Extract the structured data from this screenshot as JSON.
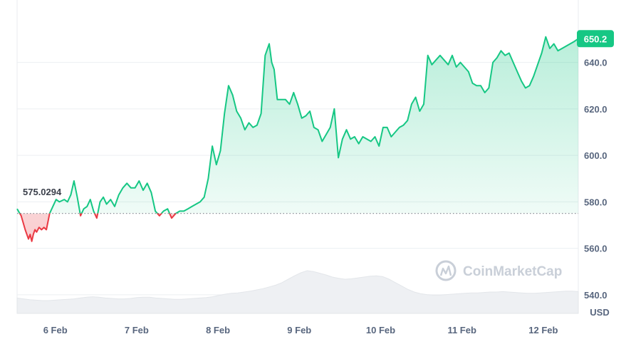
{
  "chart_data": {
    "type": "line",
    "ylabel": "USD",
    "ylim": [
      532,
      665
    ],
    "y_ticks": [
      "640.0",
      "620.0",
      "600.0",
      "580.0",
      "560.0",
      "540.0"
    ],
    "y_tick_values": [
      640,
      620,
      600,
      580,
      560,
      540
    ],
    "x_ticks": [
      "6 Feb",
      "7 Feb",
      "8 Feb",
      "9 Feb",
      "10 Feb",
      "11 Feb",
      "12 Feb"
    ],
    "x_tick_values": [
      0.47,
      1.47,
      2.47,
      3.47,
      4.47,
      5.47,
      6.47
    ],
    "reference_value": 575.0294,
    "reference_label": "575.0294",
    "current_value": 650.2,
    "current_label": "650.2",
    "colors": {
      "up": "#16c784",
      "down": "#ea3943",
      "badge": "#16c784",
      "volume": "#eef0f3"
    },
    "series": [
      {
        "x": [
          0,
          0.05,
          0.1,
          0.12,
          0.14,
          0.16,
          0.18,
          0.2,
          0.22,
          0.24,
          0.27,
          0.3,
          0.33,
          0.36,
          0.4,
          0.44,
          0.48,
          0.52,
          0.58,
          0.62,
          0.66,
          0.7,
          0.74,
          0.78,
          0.82,
          0.86,
          0.9,
          0.94,
          0.98,
          1.02,
          1.06,
          1.1,
          1.15,
          1.2,
          1.25,
          1.3,
          1.35,
          1.4,
          1.45,
          1.5,
          1.55,
          1.6,
          1.65,
          1.7,
          1.75,
          1.8,
          1.85,
          1.9,
          1.95,
          2.0,
          2.05,
          2.1,
          2.15,
          2.2,
          2.25,
          2.3,
          2.35,
          2.4,
          2.45,
          2.5,
          2.55,
          2.6,
          2.65,
          2.7,
          2.75,
          2.8,
          2.85,
          2.9,
          2.95,
          3.0,
          3.05,
          3.1,
          3.13,
          3.16,
          3.2,
          3.25,
          3.3,
          3.35,
          3.4,
          3.45,
          3.5,
          3.55,
          3.6,
          3.65,
          3.7,
          3.75,
          3.8,
          3.85,
          3.9,
          3.95,
          4.0,
          4.05,
          4.1,
          4.15,
          4.2,
          4.25,
          4.3,
          4.35,
          4.4,
          4.45,
          4.5,
          4.55,
          4.6,
          4.65,
          4.7,
          4.75,
          4.8,
          4.85,
          4.9,
          4.95,
          5.0,
          5.05,
          5.1,
          5.15,
          5.2,
          5.25,
          5.3,
          5.35,
          5.4,
          5.45,
          5.5,
          5.55,
          5.6,
          5.65,
          5.7,
          5.75,
          5.8,
          5.85,
          5.9,
          5.95,
          6.0,
          6.05,
          6.1,
          6.15,
          6.2,
          6.25,
          6.3,
          6.35,
          6.4,
          6.45,
          6.5,
          6.55,
          6.6,
          6.65,
          6.7,
          6.75,
          6.8,
          6.85,
          6.9
        ],
        "values": [
          577,
          574,
          568,
          566,
          564,
          566,
          563,
          566,
          568,
          567,
          569,
          568,
          569,
          568,
          575,
          578,
          581,
          580,
          581,
          580,
          583,
          589,
          582,
          574,
          577,
          578,
          581,
          576,
          573,
          580,
          582,
          579,
          581,
          578,
          583,
          586,
          588,
          586,
          586,
          589,
          585,
          588,
          584,
          576,
          574,
          576,
          577,
          573,
          575,
          576,
          576,
          577,
          578,
          579,
          580,
          582,
          590,
          604,
          596,
          602,
          618,
          630,
          626,
          619,
          616,
          611,
          614,
          612,
          613,
          618,
          643,
          648,
          640,
          637,
          624,
          624,
          624,
          622,
          627,
          622,
          616,
          617,
          619,
          612,
          611,
          606,
          609,
          612,
          620,
          599,
          607,
          611,
          607,
          608,
          605,
          608,
          607,
          606,
          608,
          604,
          612,
          612,
          608,
          610,
          612,
          613,
          615,
          622,
          625,
          619,
          622,
          643,
          639,
          641,
          643,
          641,
          639,
          643,
          638,
          640,
          638,
          636,
          631,
          630,
          630,
          627,
          629,
          640,
          642,
          645,
          643,
          644,
          640,
          636,
          632,
          629,
          630,
          634,
          639,
          644,
          651,
          646,
          648,
          645,
          646,
          647,
          648,
          649,
          650.2
        ]
      }
    ],
    "volume": [
      0.36,
      0.34,
      0.32,
      0.31,
      0.3,
      0.3,
      0.31,
      0.32,
      0.33,
      0.34,
      0.36,
      0.38,
      0.39,
      0.38,
      0.36,
      0.35,
      0.34,
      0.34,
      0.35,
      0.37,
      0.38,
      0.38,
      0.36,
      0.35,
      0.34,
      0.33,
      0.33,
      0.34,
      0.35,
      0.36,
      0.37,
      0.39,
      0.42,
      0.45,
      0.47,
      0.48,
      0.5,
      0.52,
      0.55,
      0.58,
      0.62,
      0.66,
      0.72,
      0.8,
      0.88,
      0.95,
      1.0,
      0.98,
      0.94,
      0.9,
      0.85,
      0.82,
      0.8,
      0.81,
      0.83,
      0.85,
      0.87,
      0.88,
      0.86,
      0.8,
      0.72,
      0.64,
      0.56,
      0.5,
      0.46,
      0.44,
      0.43,
      0.43,
      0.44,
      0.45,
      0.46,
      0.47,
      0.48,
      0.48,
      0.49,
      0.5,
      0.5,
      0.51,
      0.5,
      0.49,
      0.48,
      0.47,
      0.47,
      0.48,
      0.49,
      0.5,
      0.51,
      0.52,
      0.52,
      0.51
    ]
  },
  "watermark": {
    "text": "CoinMarketCap",
    "icon": "coinmarketcap-logo-icon"
  }
}
